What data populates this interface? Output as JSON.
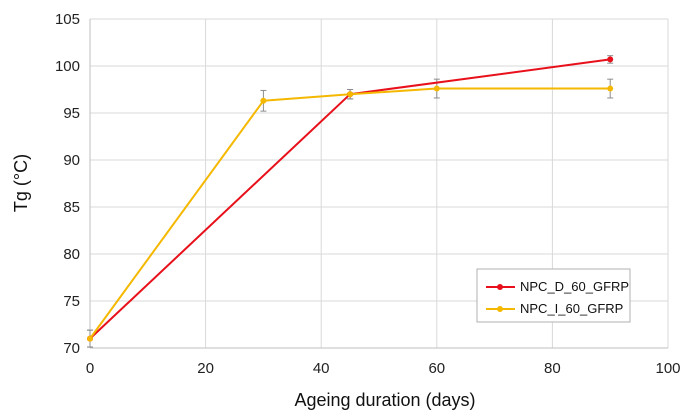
{
  "chart_data": {
    "type": "line",
    "title": "",
    "xlabel": "Ageing duration (days)",
    "ylabel": "Tg (°C)",
    "xlim": [
      0,
      100
    ],
    "ylim": [
      70,
      105
    ],
    "x_ticks": [
      0,
      20,
      40,
      60,
      80,
      100
    ],
    "y_ticks": [
      70,
      75,
      80,
      85,
      90,
      95,
      100,
      105
    ],
    "x_tick_labels": [
      "0",
      "20",
      "40",
      "60",
      "80",
      "100"
    ],
    "y_tick_labels": [
      "70",
      "75",
      "80",
      "85",
      "90",
      "95",
      "100",
      "105"
    ],
    "grid": true,
    "legend_position": "bottom-right",
    "series": [
      {
        "name": "NPC_D_60_GFRP",
        "color": "#e8101a",
        "x": [
          0,
          45,
          90
        ],
        "y": [
          71.0,
          97.0,
          100.7
        ],
        "err": [
          0.9,
          0.5,
          0.4
        ]
      },
      {
        "name": "NPC_I_60_GFRP",
        "color": "#f5b800",
        "x": [
          0,
          30,
          45,
          60,
          90
        ],
        "y": [
          71.0,
          96.3,
          97.0,
          97.6,
          97.6
        ],
        "err": [
          0.9,
          1.1,
          0.5,
          1.0,
          1.0
        ]
      }
    ]
  }
}
